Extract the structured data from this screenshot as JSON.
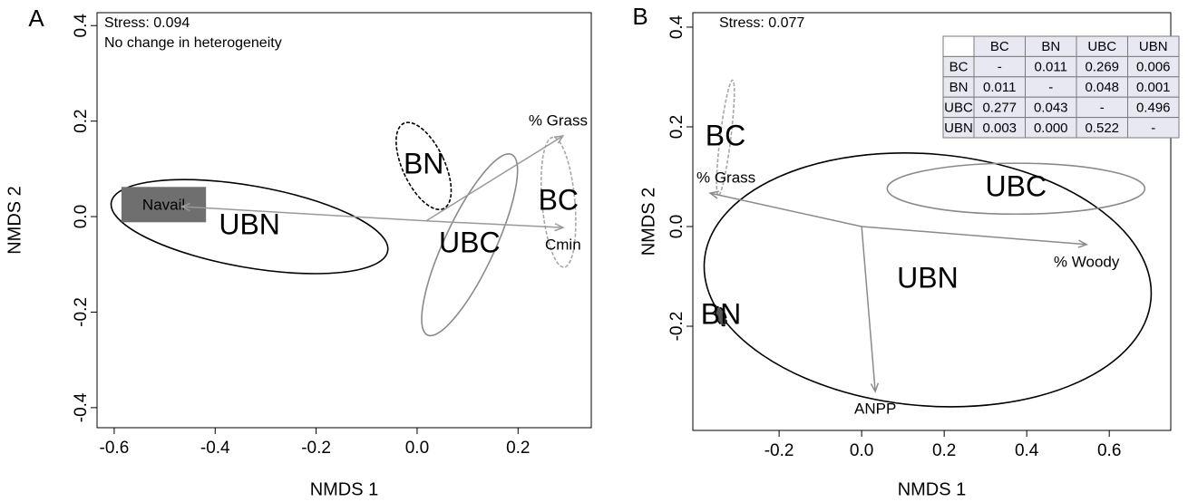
{
  "chart_data": [
    {
      "type": "ordination",
      "panel": "A",
      "xlabel": "NMDS 1",
      "ylabel": "NMDS 2",
      "xlim": [
        -0.634,
        0.345
      ],
      "ylim": [
        -0.442,
        0.427
      ],
      "xticks": [
        -0.6,
        -0.4,
        -0.2,
        {
          "value": 0,
          "label": "0.0"
        },
        0.2
      ],
      "yticks": [
        -0.4,
        -0.2,
        {
          "value": 0,
          "label": "0.0"
        },
        0.2,
        0.4
      ],
      "annotations": [
        "Stress: 0.094",
        "No change in heterogeneity"
      ],
      "arrow_color": "#9a9a9a",
      "ellipses": [
        {
          "name": "UBN",
          "color": "#000000",
          "dashed": false,
          "center": [
            -0.332,
            -0.021
          ],
          "width": 0.556,
          "height": 0.171,
          "angle": 10
        },
        {
          "name": "BN",
          "color": "#000000",
          "dashed": true,
          "center": [
            0.013,
            0.106
          ],
          "width": 0.083,
          "height": 0.197,
          "angle": -25
        },
        {
          "name": "UBC",
          "color": "#8a8a8a",
          "dashed": false,
          "center": [
            0.104,
            -0.059
          ],
          "width": 0.1,
          "height": 0.417,
          "angle": 25
        },
        {
          "name": "BC",
          "color": "#a8a8a8",
          "dashed": true,
          "center": [
            0.28,
            0.03
          ],
          "width": 0.065,
          "height": 0.273,
          "angle": -5
        }
      ],
      "arrows": [
        {
          "label": "Navail",
          "x": [
            0.018,
            -0.466
          ],
          "y": [
            -0.009,
            0.021
          ],
          "label_fill": "#6f6f6f"
        },
        {
          "label": "% Grass",
          "x": [
            0.018,
            0.289
          ],
          "y": [
            -0.009,
            0.169
          ]
        },
        {
          "label": "Cmin",
          "x": [
            0.018,
            0.289
          ],
          "y": [
            -0.009,
            -0.023
          ]
        }
      ]
    },
    {
      "type": "ordination",
      "panel": "B",
      "xlabel": "NMDS 1",
      "ylabel": "NMDS 2",
      "xlim": [
        -0.409,
        0.749
      ],
      "ylim": [
        -0.409,
        0.429
      ],
      "xticks": [
        -0.2,
        {
          "value": 0,
          "label": "0.0"
        },
        0.2,
        0.4,
        0.6
      ],
      "yticks": [
        -0.2,
        {
          "value": 0,
          "label": "0.0"
        },
        0.2,
        0.4
      ],
      "annotations": [
        "Stress: 0.077"
      ],
      "arrow_color": "#8a8a8a",
      "ellipses": [
        {
          "name": "UBN",
          "color": "#000000",
          "dashed": false,
          "center": [
            0.16,
            -0.107
          ],
          "width": 1.086,
          "height": 0.505,
          "angle": 5
        },
        {
          "name": "UBC",
          "color": "#8a8a8a",
          "dashed": false,
          "center": [
            0.374,
            0.076
          ],
          "width": 0.624,
          "height": 0.102,
          "angle": 0
        },
        {
          "name": "BC",
          "color": "#a8a8a8",
          "dashed": true,
          "center": [
            -0.33,
            0.178
          ],
          "width": 0.026,
          "height": 0.233,
          "angle": 7
        },
        {
          "name": "BN",
          "color": "#000000",
          "dashed": true,
          "fill": "#555555",
          "center": [
            -0.341,
            -0.18
          ],
          "width": 0.022,
          "height": 0.04,
          "angle": -20
        }
      ],
      "arrows": [
        {
          "label": "% Grass",
          "x": [
            0,
            -0.367
          ],
          "y": [
            0,
            0.067
          ]
        },
        {
          "label": "% Woody",
          "x": [
            0,
            0.545
          ],
          "y": [
            0,
            -0.036
          ]
        },
        {
          "label": "ANPP",
          "x": [
            0,
            0.033
          ],
          "y": [
            0,
            -0.331
          ]
        }
      ],
      "table": {
        "columns": [
          "BC",
          "BN",
          "UBC",
          "UBN"
        ],
        "rows": [
          {
            "name": "BC",
            "cells": [
              "-",
              "0.011",
              "0.269",
              "0.006"
            ]
          },
          {
            "name": "BN",
            "cells": [
              "0.011",
              "-",
              "0.048",
              "0.001"
            ]
          },
          {
            "name": "UBC",
            "cells": [
              "0.277",
              "0.043",
              "-",
              "0.496"
            ]
          },
          {
            "name": "UBN",
            "cells": [
              "0.003",
              "0.000",
              "0.522",
              "-"
            ]
          }
        ]
      }
    }
  ]
}
